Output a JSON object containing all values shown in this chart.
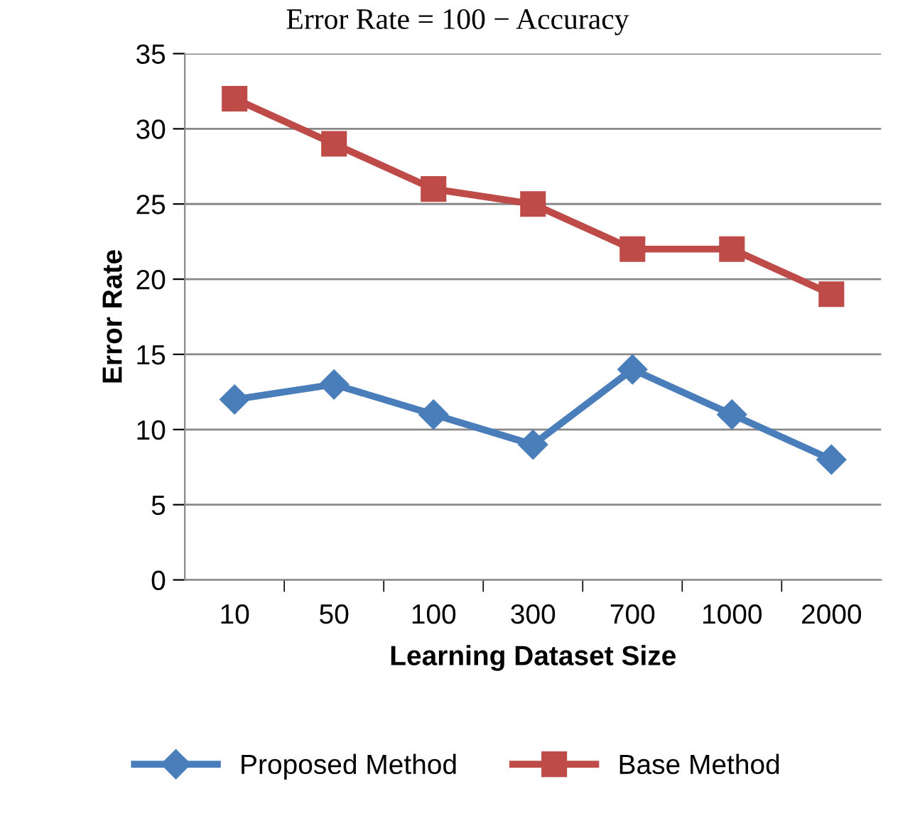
{
  "chart_data": {
    "type": "line",
    "title": "Error Rate = 100 − Accuracy",
    "xlabel": "Learning Dataset Size",
    "ylabel": "Error Rate",
    "categories": [
      "10",
      "50",
      "100",
      "300",
      "700",
      "1000",
      "2000"
    ],
    "series": [
      {
        "name": "Proposed Method",
        "color": "#4a7ebb",
        "values": [
          12,
          13,
          11,
          9,
          14,
          11,
          8
        ],
        "marker": "diamond"
      },
      {
        "name": "Base Method",
        "color": "#be4b48",
        "values": [
          32,
          29,
          26,
          25,
          22,
          22,
          19
        ],
        "marker": "square"
      }
    ],
    "ylim": [
      0,
      35
    ],
    "yticks": [
      0,
      5,
      10,
      15,
      20,
      25,
      30,
      35
    ],
    "grid": "y",
    "legend": "bottom",
    "line_style": "solid"
  }
}
